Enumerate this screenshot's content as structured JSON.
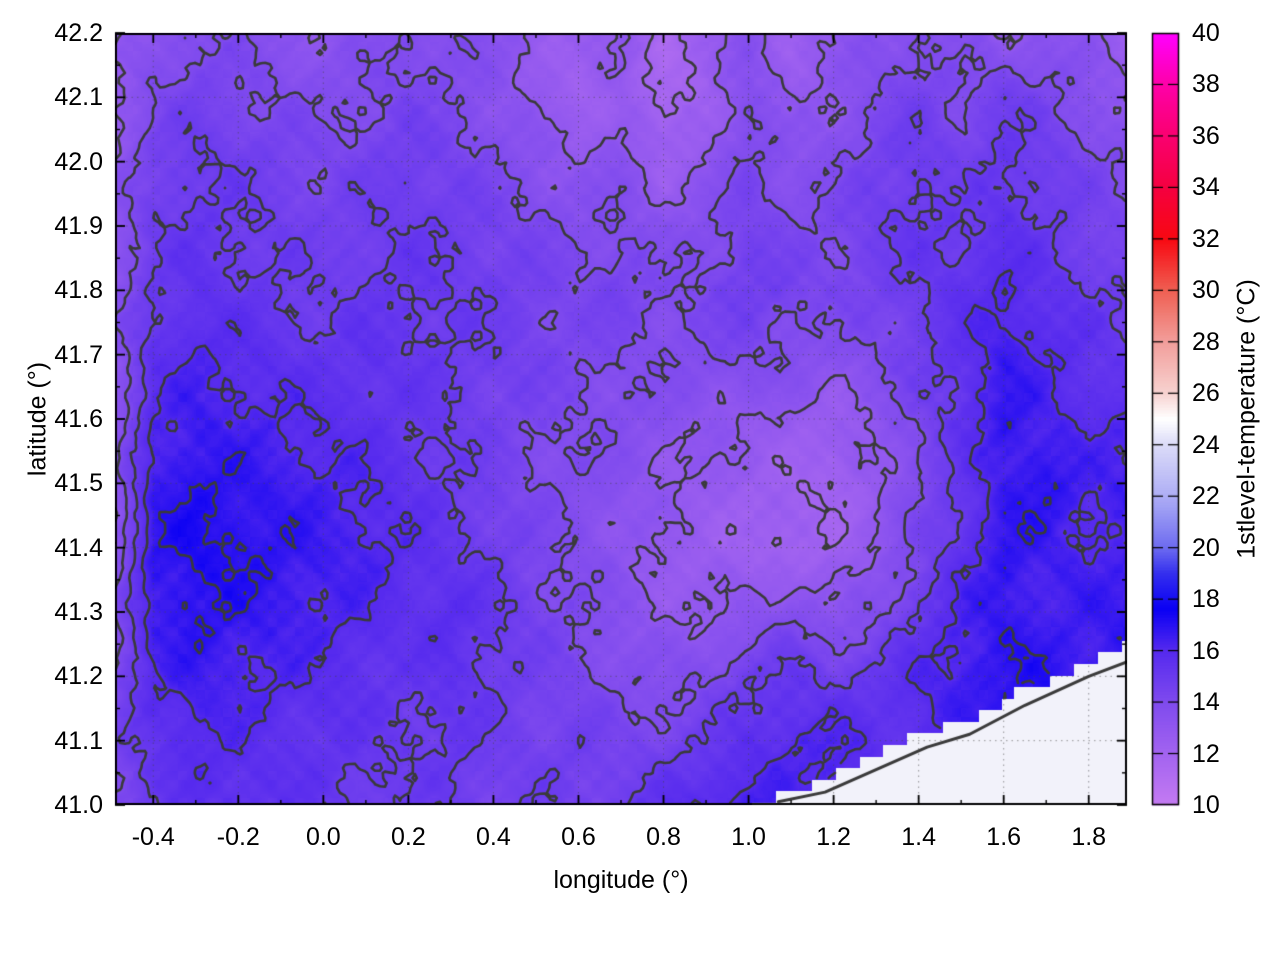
{
  "chart_data": {
    "type": "heatmap",
    "title": "",
    "xlabel": "longitude (°)",
    "ylabel": "latitude (°)",
    "colorbar_label": "1stlevel-temperature (°C)",
    "xlim": [
      -0.49,
      1.89
    ],
    "ylim": [
      41.0,
      42.2
    ],
    "clim": [
      10,
      40
    ],
    "xticks": [
      -0.4,
      -0.2,
      0.0,
      0.2,
      0.4,
      0.6,
      0.8,
      1.0,
      1.2,
      1.4,
      1.6,
      1.8
    ],
    "xtick_labels": [
      "-0.4",
      "-0.2",
      "0.0",
      "0.2",
      "0.4",
      "0.6",
      "0.8",
      "1.0",
      "1.2",
      "1.4",
      "1.6",
      "1.8"
    ],
    "x_minor_step": 0.1,
    "yticks": [
      41.0,
      41.1,
      41.2,
      41.3,
      41.4,
      41.5,
      41.6,
      41.7,
      41.8,
      41.9,
      42.0,
      42.1,
      42.2
    ],
    "ytick_labels": [
      "41.0",
      "41.1",
      "41.2",
      "41.3",
      "41.4",
      "41.5",
      "41.6",
      "41.7",
      "41.8",
      "41.9",
      "42.0",
      "42.1",
      "42.2"
    ],
    "y_minor_step": 0.05,
    "colorbar_ticks": [
      10,
      12,
      14,
      16,
      18,
      20,
      22,
      24,
      26,
      28,
      30,
      32,
      34,
      36,
      38,
      40
    ],
    "colorbar_tick_labels": [
      "10",
      "12",
      "14",
      "16",
      "18",
      "20",
      "22",
      "24",
      "26",
      "28",
      "30",
      "32",
      "34",
      "36",
      "38",
      "40"
    ],
    "grid": "dotted",
    "grid_color": "rgba(70,70,70,0.55)",
    "contour_levels": [
      12,
      13,
      14,
      15,
      16,
      17
    ],
    "contour_color": "#3a3a3a",
    "sea_color": "#f2f2fa",
    "palette_stops": [
      [
        10.0,
        "#c47af2"
      ],
      [
        12.0,
        "#a263f0"
      ],
      [
        14.0,
        "#7f4aee"
      ],
      [
        16.0,
        "#5429ee"
      ],
      [
        17.6,
        "#0a00f4"
      ],
      [
        19.0,
        "#3530ee"
      ],
      [
        20.0,
        "#6e6cf0"
      ],
      [
        22.0,
        "#aeaef5"
      ],
      [
        24.0,
        "#dcdcf8"
      ],
      [
        25.0,
        "#ffffff"
      ],
      [
        26.0,
        "#f7d2d0"
      ],
      [
        28.0,
        "#f29e9b"
      ],
      [
        30.0,
        "#ef5f52"
      ],
      [
        32.0,
        "#f80812"
      ],
      [
        34.0,
        "#f50040"
      ],
      [
        36.0,
        "#fa0070"
      ],
      [
        38.0,
        "#fe00a8"
      ],
      [
        40.0,
        "#ff00ff"
      ]
    ],
    "coast_boundary_lat_lon": [
      [
        41.0,
        1.02
      ],
      [
        41.04,
        1.18
      ],
      [
        41.07,
        1.28
      ],
      [
        41.11,
        1.39
      ],
      [
        41.13,
        1.52
      ],
      [
        41.18,
        1.65
      ],
      [
        41.22,
        1.8
      ],
      [
        41.25,
        1.9
      ]
    ],
    "sea_contour_line_lon_lat": [
      [
        1.07,
        41.005
      ],
      [
        1.18,
        41.02
      ],
      [
        1.3,
        41.055
      ],
      [
        1.42,
        41.09
      ],
      [
        1.52,
        41.11
      ],
      [
        1.65,
        41.155
      ],
      [
        1.8,
        41.2
      ],
      [
        1.9,
        41.225
      ]
    ],
    "temperature_grid": {
      "lon_start": -0.5,
      "dlon": 0.1,
      "lat_start": 42.2,
      "dlat": -0.1,
      "units": "°C",
      "values": [
        [
          12.5,
          13.5,
          14.0,
          13.8,
          13.5,
          13.2,
          13.5,
          14.0,
          13.8,
          13.4,
          13.0,
          12.4,
          13.0,
          11.8,
          12.4,
          13.5,
          12.4,
          13.0,
          13.5,
          14.0,
          13.5,
          13.0,
          13.5,
          13.0,
          12.5
        ],
        [
          12.8,
          14.0,
          14.5,
          14.2,
          14.0,
          13.8,
          14.0,
          14.3,
          14.0,
          13.5,
          12.8,
          12.2,
          12.8,
          11.6,
          12.3,
          13.8,
          12.8,
          13.2,
          14.0,
          14.5,
          14.0,
          14.8,
          14.2,
          13.6,
          13.0
        ],
        [
          13.0,
          14.5,
          15.0,
          14.8,
          14.5,
          14.2,
          14.5,
          14.8,
          14.5,
          14.0,
          13.5,
          13.0,
          13.5,
          12.3,
          13.0,
          14.2,
          13.5,
          13.8,
          14.5,
          15.0,
          14.5,
          15.2,
          14.8,
          14.2,
          13.8
        ],
        [
          13.2,
          14.8,
          15.2,
          15.0,
          14.8,
          14.5,
          14.8,
          15.0,
          14.8,
          14.5,
          14.2,
          13.8,
          14.0,
          13.4,
          13.8,
          14.5,
          14.0,
          14.2,
          14.8,
          15.2,
          15.0,
          15.5,
          15.0,
          14.5,
          14.2
        ],
        [
          13.4,
          15.0,
          15.5,
          15.2,
          15.0,
          14.8,
          15.0,
          15.2,
          15.0,
          14.8,
          14.5,
          14.2,
          14.5,
          14.0,
          14.2,
          14.8,
          14.5,
          14.2,
          14.5,
          15.0,
          15.5,
          16.0,
          15.5,
          15.0,
          14.8
        ],
        [
          13.2,
          15.5,
          16.0,
          15.8,
          15.5,
          15.2,
          15.5,
          15.2,
          15.0,
          14.8,
          14.5,
          14.2,
          14.0,
          13.8,
          14.0,
          14.2,
          13.8,
          13.5,
          14.0,
          14.8,
          15.5,
          16.5,
          16.0,
          15.5,
          15.0
        ],
        [
          13.0,
          16.0,
          16.5,
          16.2,
          16.0,
          15.8,
          15.5,
          15.2,
          15.0,
          14.5,
          14.2,
          14.0,
          13.8,
          13.5,
          13.2,
          13.0,
          12.8,
          12.5,
          13.2,
          14.2,
          15.5,
          16.8,
          16.2,
          15.8,
          16.0
        ],
        [
          13.0,
          16.5,
          17.0,
          16.8,
          16.5,
          16.2,
          16.0,
          15.5,
          15.0,
          14.5,
          14.0,
          13.8,
          13.5,
          13.0,
          12.8,
          12.5,
          12.2,
          12.0,
          12.8,
          14.0,
          15.2,
          16.5,
          17.0,
          16.2,
          16.5
        ],
        [
          12.8,
          16.8,
          17.2,
          17.0,
          16.8,
          16.5,
          16.2,
          15.8,
          15.2,
          14.8,
          14.2,
          13.8,
          13.2,
          12.8,
          12.5,
          12.2,
          12.0,
          12.2,
          13.0,
          14.2,
          15.5,
          16.8,
          16.5,
          16.0,
          16.2
        ],
        [
          13.5,
          16.5,
          17.0,
          16.8,
          16.5,
          16.2,
          16.0,
          15.5,
          15.8,
          15.2,
          14.5,
          14.0,
          13.5,
          13.0,
          12.8,
          13.2,
          13.8,
          13.2,
          13.8,
          15.0,
          16.2,
          16.8,
          16.2,
          16.5,
          16.8
        ],
        [
          14.0,
          16.0,
          16.5,
          16.2,
          16.0,
          15.8,
          15.5,
          15.2,
          15.5,
          15.0,
          14.5,
          14.2,
          13.8,
          13.5,
          14.0,
          14.8,
          15.2,
          14.8,
          15.2,
          16.0,
          16.5,
          16.8,
          17.0,
          null,
          null
        ],
        [
          14.2,
          15.5,
          16.0,
          15.8,
          15.5,
          15.5,
          15.2,
          15.0,
          15.2,
          14.8,
          14.5,
          14.8,
          14.2,
          14.5,
          15.0,
          15.5,
          16.0,
          16.2,
          null,
          null,
          null,
          null,
          null,
          null,
          null
        ],
        [
          14.2,
          15.0,
          15.5,
          15.8,
          15.5,
          15.2,
          15.0,
          14.8,
          15.0,
          14.5,
          14.8,
          14.5,
          15.0,
          15.5,
          16.0,
          16.5,
          null,
          null,
          null,
          null,
          null,
          null,
          null,
          null,
          null
        ]
      ]
    }
  }
}
